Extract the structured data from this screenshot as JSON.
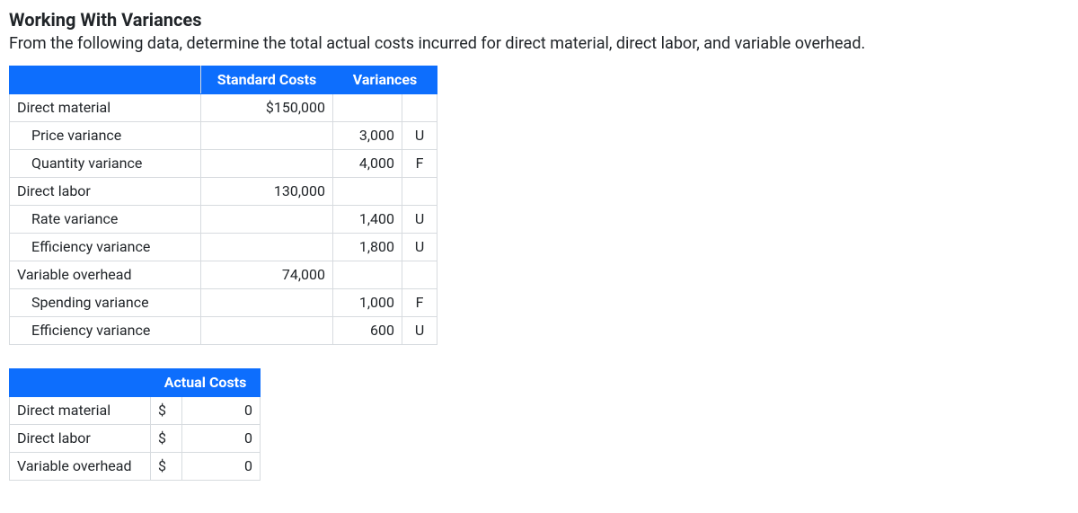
{
  "heading": "Working With Variances",
  "subtitle": "From the following data, determine the total actual costs incurred for direct material, direct labor, and variable overhead.",
  "variances_table": {
    "headers": {
      "standard_costs": "Standard Costs",
      "variances": "Variances"
    },
    "rows": [
      {
        "label": "Direct material",
        "indent": false,
        "standard": "$150,000",
        "variance": "",
        "flag": ""
      },
      {
        "label": "Price variance",
        "indent": true,
        "standard": "",
        "variance": "3,000",
        "flag": "U"
      },
      {
        "label": "Quantity variance",
        "indent": true,
        "standard": "",
        "variance": "4,000",
        "flag": "F"
      },
      {
        "label": "Direct labor",
        "indent": false,
        "standard": "130,000",
        "variance": "",
        "flag": ""
      },
      {
        "label": "Rate variance",
        "indent": true,
        "standard": "",
        "variance": "1,400",
        "flag": "U"
      },
      {
        "label": "Efficiency variance",
        "indent": true,
        "standard": "",
        "variance": "1,800",
        "flag": "U"
      },
      {
        "label": "Variable overhead",
        "indent": false,
        "standard": "74,000",
        "variance": "",
        "flag": ""
      },
      {
        "label": "Spending variance",
        "indent": true,
        "standard": "",
        "variance": "1,000",
        "flag": "F"
      },
      {
        "label": "Efficiency variance",
        "indent": true,
        "standard": "",
        "variance": "600",
        "flag": "U"
      }
    ]
  },
  "actual_table": {
    "header": "Actual Costs",
    "rows": [
      {
        "label": "Direct material",
        "currency": "$",
        "value": "0"
      },
      {
        "label": "Direct labor",
        "currency": "$",
        "value": "0"
      },
      {
        "label": "Variable overhead",
        "currency": "$",
        "value": "0"
      }
    ]
  },
  "style": {
    "header_bg": "#0d6efd",
    "header_fg": "#ffffff",
    "border_color": "#d7dbdf",
    "background_color": "#ffffff",
    "text_color": "#212529",
    "heading_fontsize": 20,
    "subtitle_fontsize": 18,
    "body_fontsize": 16
  }
}
